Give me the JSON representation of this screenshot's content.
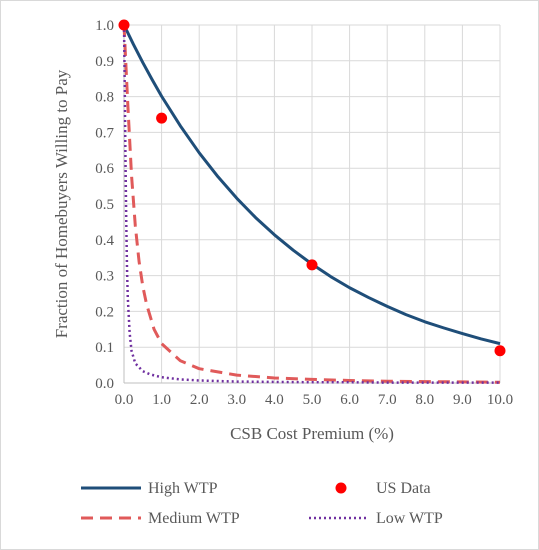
{
  "chart_data": {
    "type": "line",
    "xlabel": "CSB Cost Premium (%)",
    "ylabel": "Fraction of Homebuyers Willing to Pay",
    "xlim": [
      0,
      10
    ],
    "ylim": [
      0,
      1
    ],
    "x_ticks": [
      "0.0",
      "1.0",
      "2.0",
      "3.0",
      "4.0",
      "5.0",
      "6.0",
      "7.0",
      "8.0",
      "9.0",
      "10.0"
    ],
    "y_ticks": [
      "0.0",
      "0.1",
      "0.2",
      "0.3",
      "0.4",
      "0.5",
      "0.6",
      "0.7",
      "0.8",
      "0.9",
      "1.0"
    ],
    "grid": true,
    "legend_position": "bottom",
    "series": [
      {
        "name": "High WTP",
        "style": "solid",
        "color": "#1f4e79",
        "x": [
          0,
          0.25,
          0.5,
          0.75,
          1,
          1.5,
          2,
          2.5,
          3,
          3.5,
          4,
          4.5,
          5,
          5.5,
          6,
          6.5,
          7,
          7.5,
          8,
          8.5,
          9,
          9.5,
          10
        ],
        "y": [
          1.0,
          0.946,
          0.895,
          0.847,
          0.801,
          0.718,
          0.643,
          0.576,
          0.516,
          0.462,
          0.414,
          0.371,
          0.332,
          0.297,
          0.266,
          0.239,
          0.214,
          0.191,
          0.171,
          0.154,
          0.138,
          0.123,
          0.11
        ]
      },
      {
        "name": "Medium WTP",
        "style": "dashed",
        "color": "#e05a5a",
        "x": [
          0,
          0.05,
          0.1,
          0.15,
          0.2,
          0.3,
          0.4,
          0.5,
          0.6,
          0.8,
          1,
          1.5,
          2,
          3,
          4,
          5,
          6,
          7,
          8,
          9,
          10
        ],
        "y": [
          1.0,
          0.89,
          0.78,
          0.68,
          0.58,
          0.44,
          0.34,
          0.27,
          0.22,
          0.15,
          0.11,
          0.062,
          0.04,
          0.022,
          0.014,
          0.01,
          0.007,
          0.005,
          0.004,
          0.003,
          0.002
        ]
      },
      {
        "name": "Low WTP",
        "style": "dotted",
        "color": "#7030a0",
        "x": [
          0,
          0.02,
          0.04,
          0.06,
          0.08,
          0.1,
          0.15,
          0.2,
          0.3,
          0.5,
          0.7,
          1,
          1.5,
          2,
          3,
          4,
          5,
          6,
          7,
          8,
          9,
          10
        ],
        "y": [
          1.0,
          0.82,
          0.62,
          0.45,
          0.32,
          0.24,
          0.14,
          0.09,
          0.055,
          0.033,
          0.024,
          0.016,
          0.01,
          0.007,
          0.004,
          0.003,
          0.002,
          0.002,
          0.001,
          0.001,
          0.001,
          0.001
        ]
      },
      {
        "name": "US Data",
        "style": "marker",
        "color": "#ff0000",
        "x": [
          0,
          1,
          5,
          10
        ],
        "y": [
          1.0,
          0.74,
          0.33,
          0.09
        ]
      }
    ]
  }
}
